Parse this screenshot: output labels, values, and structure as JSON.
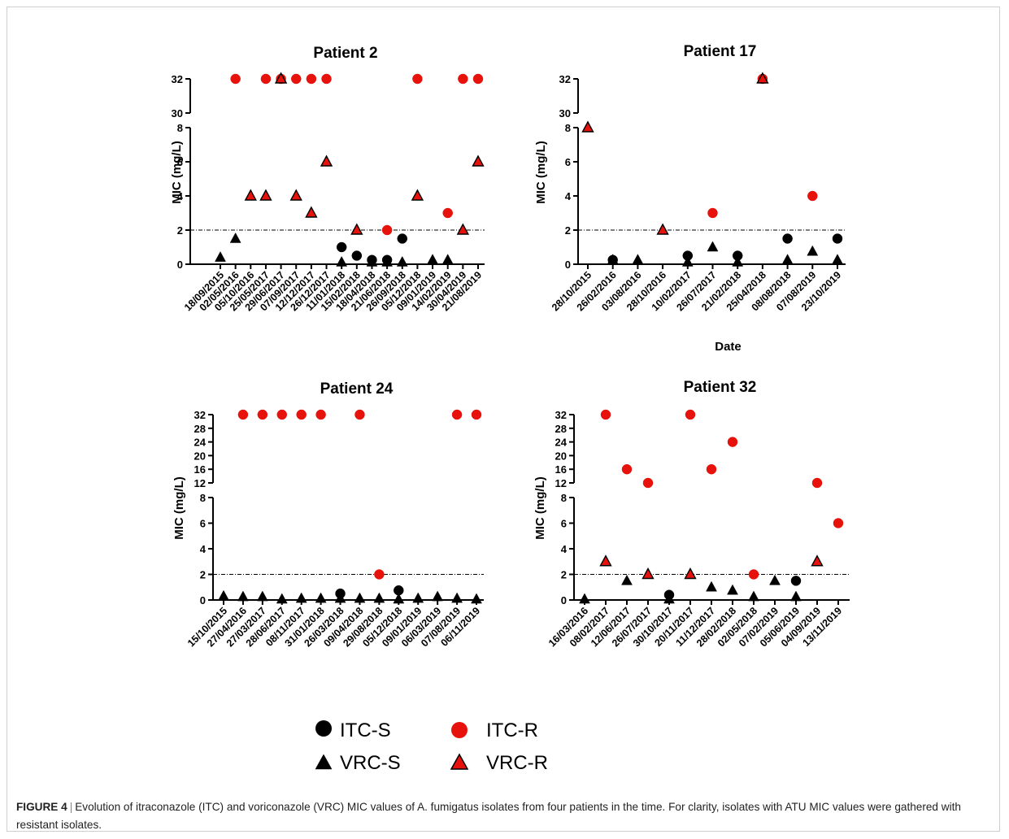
{
  "chart_data": [
    {
      "type": "scatter",
      "title": "Patient 2",
      "ylabel": "MIC (mg/L)",
      "xlabel": "",
      "y_axis": "broken",
      "y_lower_range": [
        0,
        8
      ],
      "y_lower_ticks": [
        0,
        2,
        4,
        6,
        8
      ],
      "y_upper_ticks": [
        30,
        32
      ],
      "reference_line": 2,
      "x": [
        "18/09/2015",
        "02/05/2016",
        "05/10/2016",
        "25/05/2017",
        "29/06/2017",
        "07/09/2017",
        "12/12/2017",
        "26/12/2017",
        "11/01/2018",
        "15/02/2018",
        "18/04/2018",
        "21/06/2018",
        "26/09/2018",
        "05/12/2018",
        "09/01/2019",
        "14/02/2019",
        "30/04/2019",
        "21/08/2019"
      ],
      "series": [
        {
          "name": "ITC-S",
          "points": [
            {
              "x": "11/01/2018",
              "y": 1
            },
            {
              "x": "15/02/2018",
              "y": 0.5
            },
            {
              "x": "18/04/2018",
              "y": 0.25
            },
            {
              "x": "21/06/2018",
              "y": 0.25
            },
            {
              "x": "26/09/2018",
              "y": 1.5
            }
          ]
        },
        {
          "name": "ITC-R",
          "points": [
            {
              "x": "02/05/2016",
              "y": 32
            },
            {
              "x": "25/05/2017",
              "y": 32
            },
            {
              "x": "29/06/2017",
              "y": 32
            },
            {
              "x": "07/09/2017",
              "y": 32
            },
            {
              "x": "12/12/2017",
              "y": 32
            },
            {
              "x": "26/12/2017",
              "y": 32
            },
            {
              "x": "21/06/2018",
              "y": 2
            },
            {
              "x": "05/12/2018",
              "y": 32
            },
            {
              "x": "14/02/2019",
              "y": 3
            },
            {
              "x": "30/04/2019",
              "y": 32
            },
            {
              "x": "21/08/2019",
              "y": 32
            }
          ]
        },
        {
          "name": "VRC-S",
          "points": [
            {
              "x": "18/09/2015",
              "y": 0.4
            },
            {
              "x": "02/05/2016",
              "y": 1.5
            },
            {
              "x": "11/01/2018",
              "y": 0.12
            },
            {
              "x": "18/04/2018",
              "y": 0.12
            },
            {
              "x": "21/06/2018",
              "y": 0.12
            },
            {
              "x": "26/09/2018",
              "y": 0.12
            },
            {
              "x": "09/01/2019",
              "y": 0.25
            },
            {
              "x": "14/02/2019",
              "y": 0.25
            }
          ]
        },
        {
          "name": "VRC-R",
          "points": [
            {
              "x": "05/10/2016",
              "y": 4
            },
            {
              "x": "25/05/2017",
              "y": 4
            },
            {
              "x": "29/06/2017",
              "y": 32
            },
            {
              "x": "07/09/2017",
              "y": 4
            },
            {
              "x": "12/12/2017",
              "y": 3
            },
            {
              "x": "26/12/2017",
              "y": 6
            },
            {
              "x": "15/02/2018",
              "y": 2
            },
            {
              "x": "05/12/2018",
              "y": 4
            },
            {
              "x": "30/04/2019",
              "y": 2
            },
            {
              "x": "21/08/2019",
              "y": 6
            }
          ]
        }
      ]
    },
    {
      "type": "scatter",
      "title": "Patient 17",
      "ylabel": "MIC (mg/L)",
      "xlabel": "Date",
      "y_axis": "broken",
      "y_lower_range": [
        0,
        8
      ],
      "y_lower_ticks": [
        0,
        2,
        4,
        6,
        8
      ],
      "y_upper_ticks": [
        30,
        32
      ],
      "reference_line": 2,
      "x": [
        "28/10/2015",
        "26/02/2016",
        "03/08/2016",
        "28/10/2016",
        "10/02/2017",
        "26/07/2017",
        "21/02/2018",
        "25/04/2018",
        "08/08/2018",
        "07/08/2019",
        "23/10/2019"
      ],
      "series": [
        {
          "name": "ITC-S",
          "points": [
            {
              "x": "26/02/2016",
              "y": 0.25
            },
            {
              "x": "10/02/2017",
              "y": 0.5
            },
            {
              "x": "21/02/2018",
              "y": 0.5
            },
            {
              "x": "08/08/2018",
              "y": 1.5
            },
            {
              "x": "23/10/2019",
              "y": 1.5
            }
          ]
        },
        {
          "name": "ITC-R",
          "points": [
            {
              "x": "26/07/2017",
              "y": 3
            },
            {
              "x": "25/04/2018",
              "y": 32
            },
            {
              "x": "07/08/2019",
              "y": 4
            }
          ]
        },
        {
          "name": "VRC-S",
          "points": [
            {
              "x": "26/02/2016",
              "y": 0.25
            },
            {
              "x": "03/08/2016",
              "y": 0.25
            },
            {
              "x": "10/02/2017",
              "y": 0.12
            },
            {
              "x": "26/07/2017",
              "y": 1
            },
            {
              "x": "21/02/2018",
              "y": 0.12
            },
            {
              "x": "08/08/2018",
              "y": 0.25
            },
            {
              "x": "07/08/2019",
              "y": 0.75
            },
            {
              "x": "23/10/2019",
              "y": 0.25
            }
          ]
        },
        {
          "name": "VRC-R",
          "points": [
            {
              "x": "28/10/2015",
              "y": 8
            },
            {
              "x": "28/10/2016",
              "y": 2
            },
            {
              "x": "25/04/2018",
              "y": 32
            }
          ]
        }
      ]
    },
    {
      "type": "scatter",
      "title": "Patient 24",
      "ylabel": "MIC (mg/L)",
      "xlabel": "",
      "y_axis": "broken",
      "y_lower_range": [
        0,
        8
      ],
      "y_lower_ticks": [
        0,
        2,
        4,
        6,
        8
      ],
      "y_upper_ticks": [
        12,
        16,
        20,
        24,
        28,
        32
      ],
      "reference_line": 2,
      "x": [
        "15/10/2015",
        "27/04/2016",
        "27/03/2017",
        "28/06/2017",
        "08/11/2017",
        "31/01/2018",
        "26/03/2018",
        "09/04/2018",
        "29/08/2018",
        "05/12/2018",
        "09/01/2019",
        "06/03/2019",
        "07/08/2019",
        "06/11/2019"
      ],
      "series": [
        {
          "name": "ITC-S",
          "points": [
            {
              "x": "26/03/2018",
              "y": 0.5
            },
            {
              "x": "05/12/2018",
              "y": 0.75
            }
          ]
        },
        {
          "name": "ITC-R",
          "points": [
            {
              "x": "27/04/2016",
              "y": 32
            },
            {
              "x": "27/03/2017",
              "y": 32
            },
            {
              "x": "28/06/2017",
              "y": 32
            },
            {
              "x": "08/11/2017",
              "y": 32
            },
            {
              "x": "31/01/2018",
              "y": 32
            },
            {
              "x": "09/04/2018",
              "y": 32
            },
            {
              "x": "29/08/2018",
              "y": 2
            },
            {
              "x": "07/08/2019",
              "y": 32
            },
            {
              "x": "06/11/2019",
              "y": 32
            }
          ]
        },
        {
          "name": "VRC-S",
          "points": [
            {
              "x": "15/10/2015",
              "y": 0.3
            },
            {
              "x": "27/04/2016",
              "y": 0.25
            },
            {
              "x": "27/03/2017",
              "y": 0.25
            },
            {
              "x": "28/06/2017",
              "y": 0.06
            },
            {
              "x": "08/11/2017",
              "y": 0.12
            },
            {
              "x": "31/01/2018",
              "y": 0.12
            },
            {
              "x": "26/03/2018",
              "y": 0.12
            },
            {
              "x": "09/04/2018",
              "y": 0.12
            },
            {
              "x": "29/08/2018",
              "y": 0.12
            },
            {
              "x": "05/12/2018",
              "y": 0.06
            },
            {
              "x": "09/01/2019",
              "y": 0.12
            },
            {
              "x": "06/03/2019",
              "y": 0.25
            },
            {
              "x": "07/08/2019",
              "y": 0.12
            },
            {
              "x": "06/11/2019",
              "y": 0.06
            }
          ]
        },
        {
          "name": "VRC-R",
          "points": []
        }
      ]
    },
    {
      "type": "scatter",
      "title": "Patient 32",
      "ylabel": "MIC (mg/L)",
      "xlabel": "",
      "y_axis": "broken",
      "y_lower_range": [
        0,
        8
      ],
      "y_lower_ticks": [
        0,
        2,
        4,
        6,
        8
      ],
      "y_upper_ticks": [
        12,
        16,
        20,
        24,
        28,
        32
      ],
      "reference_line": 2,
      "x": [
        "16/03/2016",
        "08/02/2017",
        "12/06/2017",
        "26/07/2017",
        "30/10/2017",
        "20/11/2017",
        "11/12/2017",
        "28/02/2018",
        "02/05/2018",
        "07/02/2019",
        "05/06/2019",
        "04/09/2019",
        "13/11/2019"
      ],
      "series": [
        {
          "name": "ITC-S",
          "points": [
            {
              "x": "30/10/2017",
              "y": 0.4
            },
            {
              "x": "05/06/2019",
              "y": 1.5
            }
          ]
        },
        {
          "name": "ITC-R",
          "points": [
            {
              "x": "08/02/2017",
              "y": 32
            },
            {
              "x": "12/06/2017",
              "y": 16
            },
            {
              "x": "26/07/2017",
              "y": 12
            },
            {
              "x": "20/11/2017",
              "y": 32
            },
            {
              "x": "11/12/2017",
              "y": 16
            },
            {
              "x": "28/02/2018",
              "y": 24
            },
            {
              "x": "02/05/2018",
              "y": 2
            },
            {
              "x": "04/09/2019",
              "y": 12
            },
            {
              "x": "13/11/2019",
              "y": 6
            }
          ]
        },
        {
          "name": "VRC-S",
          "points": [
            {
              "x": "16/03/2016",
              "y": 0.06
            },
            {
              "x": "12/06/2017",
              "y": 1.5
            },
            {
              "x": "30/10/2017",
              "y": 0.06
            },
            {
              "x": "11/12/2017",
              "y": 1
            },
            {
              "x": "28/02/2018",
              "y": 0.75
            },
            {
              "x": "02/05/2018",
              "y": 0.25
            },
            {
              "x": "07/02/2019",
              "y": 1.5
            },
            {
              "x": "05/06/2019",
              "y": 0.25
            }
          ]
        },
        {
          "name": "VRC-R",
          "points": [
            {
              "x": "08/02/2017",
              "y": 3
            },
            {
              "x": "26/07/2017",
              "y": 2
            },
            {
              "x": "20/11/2017",
              "y": 2
            },
            {
              "x": "04/09/2019",
              "y": 3
            }
          ]
        }
      ]
    }
  ],
  "legend": {
    "items": [
      {
        "label": "ITC-S",
        "marker": "circle",
        "color": "#000000"
      },
      {
        "label": "ITC-R",
        "marker": "circle",
        "color": "#e8120c"
      },
      {
        "label": "VRC-S",
        "marker": "triangle",
        "color": "#000000"
      },
      {
        "label": "VRC-R",
        "marker": "triangle",
        "color": "#e8120c"
      }
    ]
  },
  "caption": {
    "label": "FIGURE 4",
    "separator": "|",
    "text": "Evolution of itraconazole (ITC) and voriconazole (VRC) MIC values of A. fumigatus isolates from four patients in the time. For clarity, isolates with ATU MIC values were gathered with resistant isolates."
  },
  "colors": {
    "resistant": "#e8120c",
    "susceptible": "#000000",
    "marker_edge": "#5a0000"
  }
}
